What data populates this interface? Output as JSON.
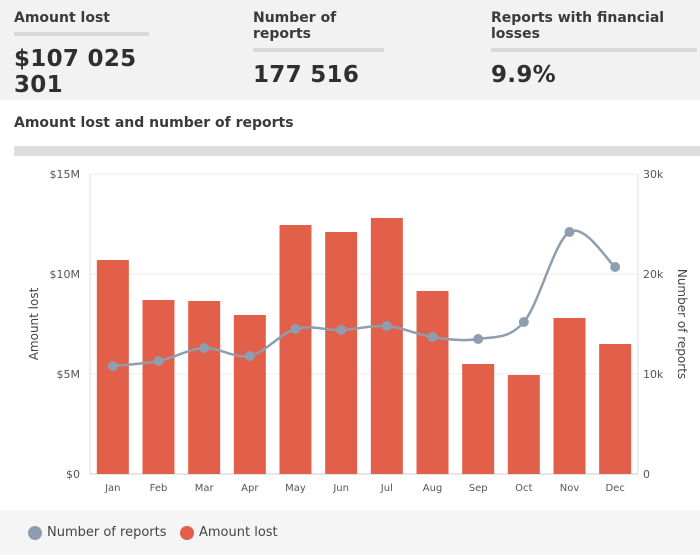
{
  "stats": [
    {
      "label": "Amount lost",
      "value": "$107 025 301"
    },
    {
      "label": "Number of reports",
      "value": "177 516"
    },
    {
      "label": "Reports with financial losses",
      "value": "9.9%"
    }
  ],
  "panel": {
    "title": "Amount lost and number of reports"
  },
  "colors": {
    "bar": "#e2604a",
    "line": "#8e9eae"
  },
  "chart_data": {
    "type": "bar+line",
    "categories": [
      "Jan",
      "Feb",
      "Mar",
      "Apr",
      "May",
      "Jun",
      "Jul",
      "Aug",
      "Sep",
      "Oct",
      "Nov",
      "Dec"
    ],
    "series": [
      {
        "name": "Amount lost",
        "type": "bar",
        "axis": "left",
        "values": [
          10700000,
          8700000,
          8650000,
          7950000,
          12450000,
          12100000,
          12800000,
          9150000,
          5500000,
          4950000,
          7800000,
          6500000
        ]
      },
      {
        "name": "Number of reports",
        "type": "line",
        "axis": "right",
        "values": [
          10800,
          11300,
          12600,
          11800,
          14500,
          14400,
          14800,
          13700,
          13500,
          15200,
          24200,
          20700
        ]
      }
    ],
    "ylabel": "Amount lost",
    "y2label": "Number of reports",
    "ylim": [
      0,
      15000000
    ],
    "y2lim": [
      0,
      30000
    ],
    "yticks": [
      "$0",
      "$5M",
      "$10M",
      "$15M"
    ],
    "y2ticks": [
      "0",
      "10k",
      "20k",
      "30k"
    ],
    "legend": "bottom-left",
    "grid": true
  }
}
